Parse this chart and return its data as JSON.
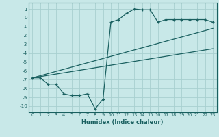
{
  "xlabel": "Humidex (Indice chaleur)",
  "bg_color": "#c8e8e8",
  "grid_color": "#a8d0d0",
  "line_color": "#1a6060",
  "xlim": [
    -0.5,
    23.5
  ],
  "ylim": [
    -10.7,
    1.7
  ],
  "yticks": [
    1,
    0,
    -1,
    -2,
    -3,
    -4,
    -5,
    -6,
    -7,
    -8,
    -9,
    -10
  ],
  "xticks": [
    0,
    1,
    2,
    3,
    4,
    5,
    6,
    7,
    8,
    9,
    10,
    11,
    12,
    13,
    14,
    15,
    16,
    17,
    18,
    19,
    20,
    21,
    22,
    23
  ],
  "curve1_x": [
    0,
    1,
    2,
    3,
    4,
    5,
    6,
    7,
    8,
    9,
    10,
    11,
    12,
    13,
    14,
    15,
    16,
    17,
    18,
    19,
    20,
    21,
    22,
    23
  ],
  "curve1_y": [
    -6.8,
    -6.8,
    -7.5,
    -7.5,
    -8.6,
    -8.8,
    -8.8,
    -8.6,
    -10.3,
    -9.2,
    -0.5,
    -0.2,
    0.5,
    1.0,
    0.9,
    0.9,
    -0.5,
    -0.2,
    -0.2,
    -0.2,
    -0.2,
    -0.2,
    -0.2,
    -0.5
  ],
  "line1_x": [
    0,
    23
  ],
  "line1_y": [
    -6.8,
    -1.2
  ],
  "line2_x": [
    0,
    23
  ],
  "line2_y": [
    -6.8,
    -3.5
  ]
}
